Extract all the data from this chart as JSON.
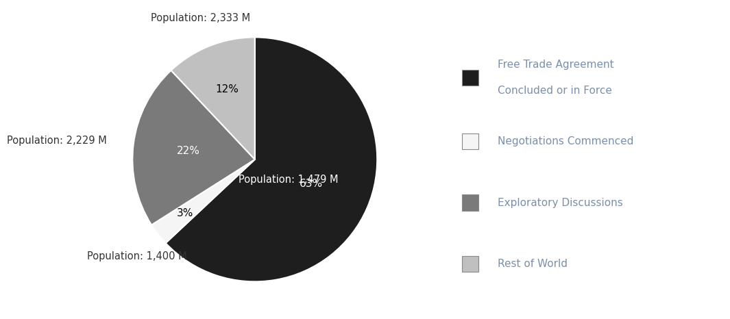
{
  "slices": [
    {
      "label": "Free Trade Agreement\nConcluded or in Force",
      "pct": 63,
      "population": "Population: 1,479 M",
      "color": "#1e1e1e"
    },
    {
      "label": "Negotiations Commenced",
      "pct": 3,
      "population": "Population: 1,400 M",
      "color": "#f5f5f5"
    },
    {
      "label": "Exploratory Discussions",
      "pct": 22,
      "population": "Population: 2,229 M",
      "color": "#7a7a7a"
    },
    {
      "label": "Rest of World",
      "pct": 12,
      "population": "Population: 2,333 M",
      "color": "#c0c0c0"
    }
  ],
  "wedge_edge_color": "#ffffff",
  "wedge_edge_width": 1.5,
  "background_color": "#ffffff",
  "pct_fontsize": 11,
  "pop_fontsize": 10.5,
  "legend_fontsize": 11,
  "legend_text_color": "#7b8fa8"
}
